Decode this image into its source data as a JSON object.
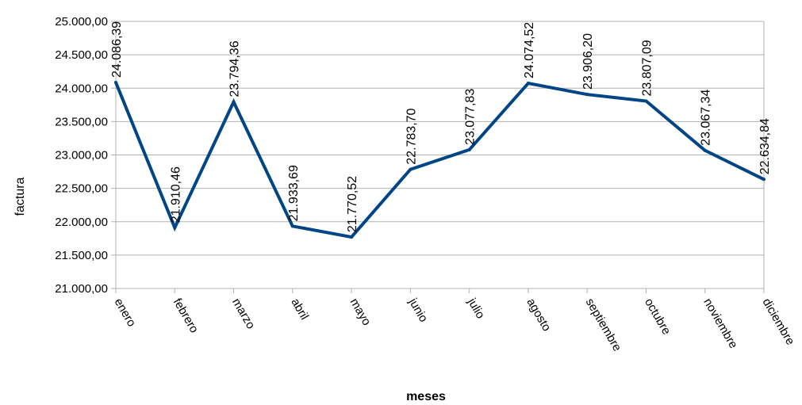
{
  "chart_data": {
    "type": "line",
    "xlabel": "meses",
    "ylabel": "factura",
    "ylim": [
      21000,
      25000
    ],
    "yticks": [
      "21.000,00",
      "21.500,00",
      "22.000,00",
      "22.500,00",
      "23.000,00",
      "23.500,00",
      "24.000,00",
      "24.500,00",
      "25.000,00"
    ],
    "categories": [
      "enero",
      "febrero",
      "marzo",
      "abril",
      "mayo",
      "junio",
      "julio",
      "agosto",
      "septiembre",
      "octubre",
      "noviembre",
      "diciembre"
    ],
    "values": [
      24086.39,
      21910.46,
      23794.36,
      21933.69,
      21770.52,
      22783.7,
      23077.83,
      24074.52,
      23906.2,
      23807.09,
      23067.34,
      22634.84
    ],
    "value_labels": [
      "24.086,39",
      "21.910,46",
      "23.794,36",
      "21.933,69",
      "21.770,52",
      "22.783,70",
      "23.077,83",
      "24.074,52",
      "23.906,20",
      "23.807,09",
      "23.067,34",
      "22.634,84"
    ],
    "grid": true,
    "legend": "none",
    "line_color": "#004586",
    "grid_color": "#b3b3b3"
  }
}
